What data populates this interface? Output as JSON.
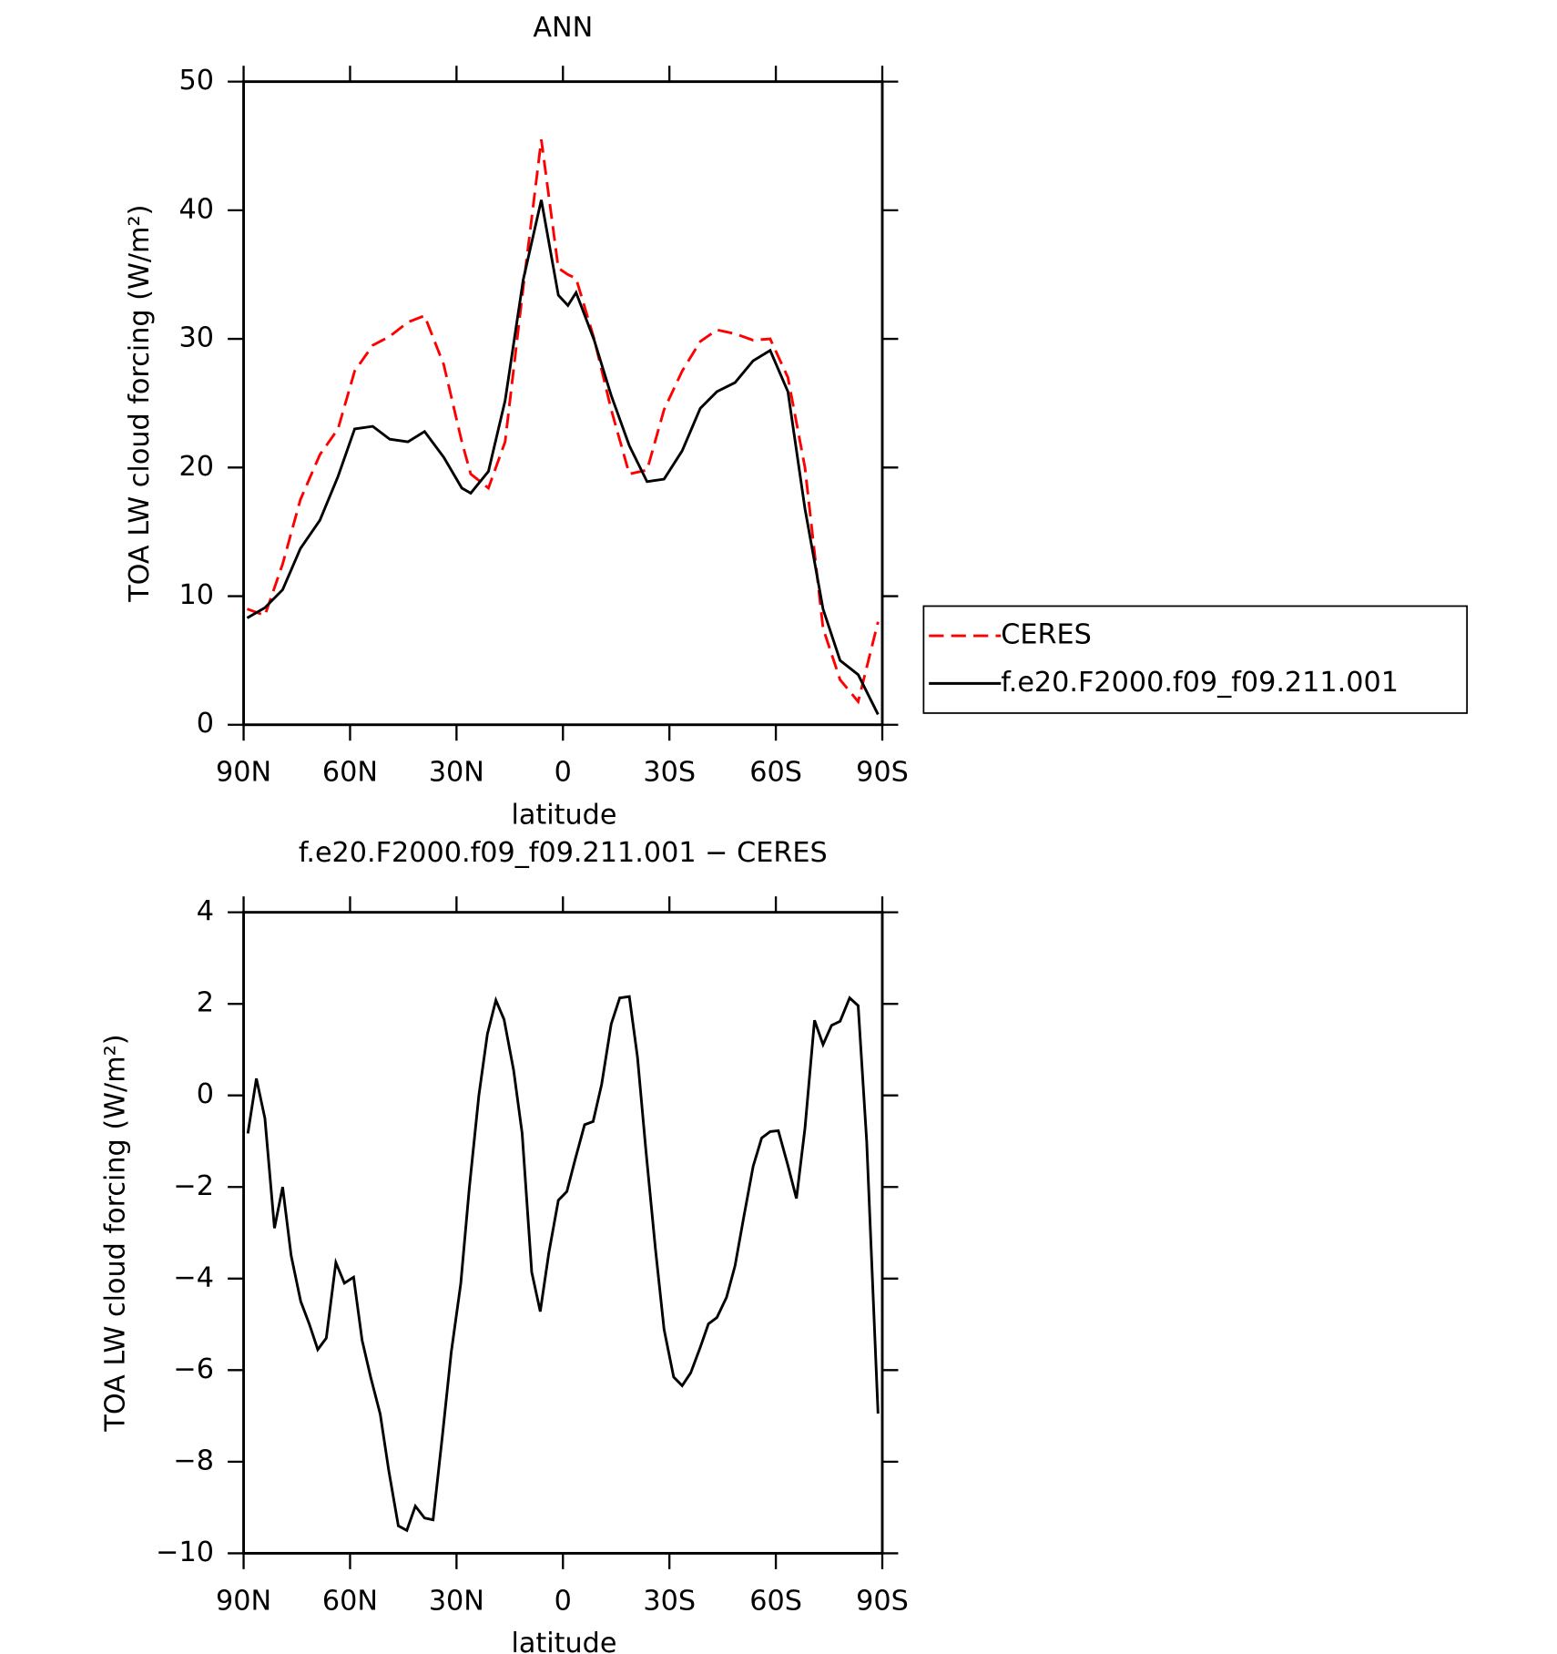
{
  "chart_data": [
    {
      "type": "line",
      "title": "ANN",
      "x_label": "latitude",
      "y_label": "TOA LW cloud forcing (W/m²)",
      "x": [
        89,
        84,
        79,
        74,
        68.5,
        63.4,
        58.7,
        53.6,
        48.8,
        43.7,
        39,
        33.6,
        28.5,
        26,
        21,
        16.3,
        11.2,
        6.1,
        1.3,
        -1.4,
        -3.7,
        -8.8,
        -13.6,
        -18.7,
        -23.7,
        -28.5,
        -33.6,
        -38.7,
        -43.4,
        -48.5,
        -53.6,
        -58.4,
        -63.4,
        -68.2,
        -73.3,
        -78.1,
        -83.2,
        -88.8
      ],
      "series": [
        {
          "name": "CERES",
          "color": "#ff0000",
          "dashed": true,
          "values": [
            9.0,
            8.5,
            12.5,
            17.5,
            21,
            23,
            27.5,
            29.5,
            30.2,
            31.3,
            31.8,
            28,
            22,
            19.5,
            18.4,
            22,
            34,
            45.5,
            35.5,
            35,
            34.7,
            30,
            24.5,
            19.5,
            19.8,
            24.5,
            27.5,
            29.8,
            30.7,
            30.4,
            29.9,
            30,
            27,
            20,
            7.5,
            3.5,
            1.8,
            8.0
          ]
        },
        {
          "name": "f.e20.F2000.f09_f09.211.001",
          "color": "#000000",
          "dashed": false,
          "values": [
            8.3,
            9.1,
            10.5,
            13.7,
            15.9,
            19.3,
            23.0,
            23.2,
            22.2,
            22.0,
            22.8,
            20.8,
            18.4,
            18.0,
            19.7,
            25.2,
            34.6,
            40.8,
            33.4,
            32.6,
            33.6,
            29.9,
            25.6,
            21.7,
            18.9,
            19.1,
            21.3,
            24.6,
            25.9,
            26.6,
            28.3,
            29.1,
            25.9,
            16.8,
            9.0,
            5.0,
            3.9,
            0.8
          ]
        }
      ],
      "xlim": [
        90,
        -90
      ],
      "xticks": [
        {
          "value": 90,
          "label": "90N"
        },
        {
          "value": 60,
          "label": "60N"
        },
        {
          "value": 30,
          "label": "30N"
        },
        0,
        {
          "value": -30,
          "label": "30S"
        },
        {
          "value": -60,
          "label": "60S"
        },
        {
          "value": -90,
          "label": "90S"
        }
      ],
      "ylim": [
        0,
        50
      ],
      "yticks": [
        0,
        10,
        20,
        30,
        40,
        50
      ],
      "legend": "right"
    },
    {
      "type": "line",
      "title": "f.e20.F2000.f09_f09.211.001 − CERES",
      "x_label": "latitude",
      "y_label": "TOA LW cloud forcing (W/m²)",
      "x": [
        88.8,
        86.4,
        84,
        81.3,
        79,
        76.6,
        73.9,
        71.5,
        69.1,
        66.7,
        64,
        61.6,
        59,
        56.6,
        54.2,
        51.5,
        49.1,
        46.4,
        44,
        41.6,
        39,
        36.6,
        33.9,
        31.5,
        28.8,
        26.4,
        23.7,
        21.3,
        18.9,
        16.6,
        13.9,
        11.5,
        8.8,
        6.4,
        4.0,
        1.3,
        -1.1,
        -3.4,
        -6.1,
        -8.5,
        -10.9,
        -13.6,
        -16,
        -18.7,
        -21.0,
        -23.4,
        -26.1,
        -28.5,
        -31.2,
        -33.6,
        -36,
        -38.7,
        -41,
        -43.4,
        -46.1,
        -48.5,
        -50.9,
        -53.6,
        -56,
        -58.4,
        -60.7,
        -63.4,
        -65.8,
        -68.2,
        -70.9,
        -73.3,
        -75.7,
        -78.1,
        -80.8,
        -83.2,
        -85.6,
        -88.8
      ],
      "series": [
        {
          "name": "f.e20.F2000.f09_f09.211.001 − CERES",
          "color": "#000000",
          "dashed": false,
          "values": [
            -0.83,
            0.37,
            -0.5,
            -2.9,
            -2.0,
            -3.5,
            -4.5,
            -4.99,
            -5.55,
            -5.3,
            -3.65,
            -4.1,
            -3.97,
            -5.35,
            -6.15,
            -6.96,
            -8.19,
            -9.4,
            -9.5,
            -8.97,
            -9.23,
            -9.27,
            -7.38,
            -5.62,
            -4.11,
            -2.03,
            0.0,
            1.34,
            2.08,
            1.66,
            0.55,
            -0.83,
            -3.86,
            -4.72,
            -3.45,
            -2.29,
            -2.1,
            -1.41,
            -0.64,
            -0.57,
            0.24,
            1.56,
            2.13,
            2.16,
            0.84,
            -1.22,
            -3.38,
            -5.11,
            -6.15,
            -6.34,
            -6.06,
            -5.5,
            -4.99,
            -4.85,
            -4.41,
            -3.72,
            -2.68,
            -1.55,
            -0.93,
            -0.79,
            -0.77,
            -1.53,
            -2.25,
            -0.72,
            1.64,
            1.11,
            1.53,
            1.62,
            2.13,
            1.96,
            -1.0,
            -6.95
          ]
        }
      ],
      "xlim": [
        90,
        -90
      ],
      "xticks": [
        {
          "value": 90,
          "label": "90N"
        },
        {
          "value": 60,
          "label": "60N"
        },
        {
          "value": 30,
          "label": "30N"
        },
        0,
        {
          "value": -30,
          "label": "30S"
        },
        {
          "value": -60,
          "label": "60S"
        },
        {
          "value": -90,
          "label": "90S"
        }
      ],
      "ylim": [
        -10,
        4
      ],
      "yticks": [
        {
          "value": -10,
          "label": "−10"
        },
        {
          "value": -8,
          "label": "−8"
        },
        {
          "value": -6,
          "label": "−6"
        },
        {
          "value": -4,
          "label": "−4"
        },
        {
          "value": -2,
          "label": "−2"
        },
        0,
        2,
        4
      ]
    }
  ]
}
